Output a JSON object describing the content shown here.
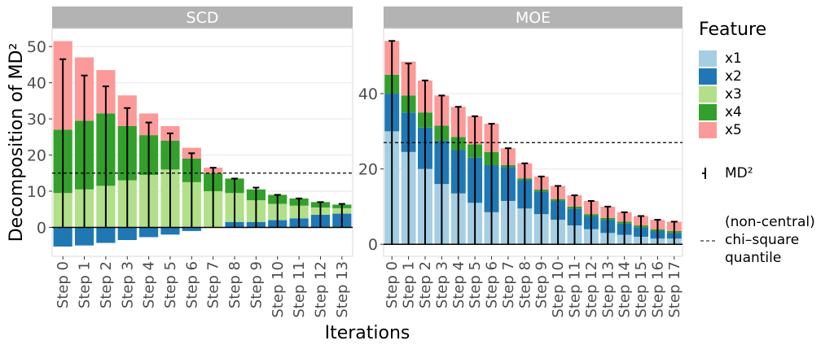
{
  "chart_data": [
    {
      "type": "bar",
      "title": "SCD",
      "x_label": "Iterations",
      "y_label": "Decomposition of MD²",
      "categories": [
        "Step 0",
        "Step 1",
        "Step 2",
        "Step 3",
        "Step 4",
        "Step 5",
        "Step 6",
        "Step 7",
        "Step 8",
        "Step 9",
        "Step 10",
        "Step 11",
        "Step 12",
        "Step 13"
      ],
      "series": [
        {
          "name": "x1",
          "color": "#a6cee3",
          "values": [
            0,
            0,
            0,
            0,
            0,
            0,
            0,
            0,
            0,
            0,
            0,
            0,
            0,
            0
          ]
        },
        {
          "name": "x2",
          "color": "#1f78b4",
          "values": [
            -5.3,
            -5,
            -4.3,
            -3.5,
            -2.7,
            -2,
            -1,
            0,
            1.5,
            1.5,
            2,
            2.5,
            3.5,
            3.8
          ]
        },
        {
          "name": "x3",
          "color": "#b2df8a",
          "values": [
            9.5,
            10.5,
            11.5,
            13,
            14.5,
            16,
            12.5,
            10,
            8,
            6,
            4.5,
            3.5,
            2,
            1.5
          ]
        },
        {
          "name": "x4",
          "color": "#33a02c",
          "values": [
            17.5,
            19,
            20,
            15,
            11,
            8,
            6.5,
            5,
            4,
            3,
            2.5,
            2,
            1.5,
            1
          ]
        },
        {
          "name": "x5",
          "color": "#fb9a99",
          "values": [
            24.5,
            17.5,
            12,
            8.5,
            6,
            4,
            3,
            1.5,
            0,
            0,
            0,
            0,
            0,
            0
          ]
        }
      ],
      "md": [
        46.5,
        42,
        39,
        33,
        29,
        26,
        20.5,
        16.5,
        13.5,
        11,
        9,
        8,
        7,
        6.5
      ],
      "quantile": 15,
      "ylim": [
        -8,
        55
      ],
      "yticks": [
        0,
        10,
        20,
        30,
        40,
        50
      ],
      "grid": true
    },
    {
      "type": "bar",
      "title": "MOE",
      "categories": [
        "Step 0",
        "Step 1",
        "Step 2",
        "Step 3",
        "Step 4",
        "Step 5",
        "Step 6",
        "Step 7",
        "Step 8",
        "Step 9",
        "Step 10",
        "Step 11",
        "Step 12",
        "Step 13",
        "Step 14",
        "Step 15",
        "Step 16",
        "Step 17"
      ],
      "series": [
        {
          "name": "x1",
          "color": "#a6cee3",
          "values": [
            30,
            24.5,
            20,
            16,
            13.5,
            11,
            8.5,
            11.5,
            9.5,
            8,
            6.5,
            5,
            4,
            3,
            2.5,
            2,
            1.5,
            1.5
          ]
        },
        {
          "name": "x2",
          "color": "#1f78b4",
          "values": [
            10,
            10.5,
            11,
            11.5,
            11.5,
            12,
            12.5,
            9,
            7.5,
            6,
            5,
            4.5,
            3.5,
            3.5,
            3,
            2.5,
            2,
            1.5
          ]
        },
        {
          "name": "x3",
          "color": "#b2df8a",
          "values": [
            0,
            0,
            0,
            0,
            0,
            0,
            0,
            0,
            0,
            0,
            0,
            0,
            0,
            0,
            0,
            0,
            0,
            0
          ]
        },
        {
          "name": "x4",
          "color": "#33a02c",
          "values": [
            5,
            4.5,
            4,
            4,
            3.5,
            3.5,
            3.5,
            0.5,
            0.5,
            0.5,
            0.5,
            0.5,
            0.5,
            0.5,
            0.5,
            0.5,
            0.5,
            0.5
          ]
        },
        {
          "name": "x5",
          "color": "#fb9a99",
          "values": [
            9,
            9,
            8.5,
            8,
            8,
            7.5,
            7.5,
            4.5,
            4,
            3.5,
            3.5,
            3,
            3.5,
            3,
            2.5,
            2.5,
            2.5,
            2.5
          ]
        }
      ],
      "md": [
        54,
        48,
        43.5,
        39.5,
        36.5,
        34,
        32,
        25.5,
        21.5,
        18,
        15.5,
        13,
        11.5,
        10,
        8.5,
        7.5,
        6.5,
        6
      ],
      "quantile": 27,
      "ylim": [
        -3.2,
        57.3
      ],
      "yticks": [
        0,
        20,
        40
      ],
      "grid": true
    }
  ],
  "legend": {
    "title": "Feature",
    "error_bar": "MD²",
    "line": "(non-central) chi–square quantile"
  }
}
